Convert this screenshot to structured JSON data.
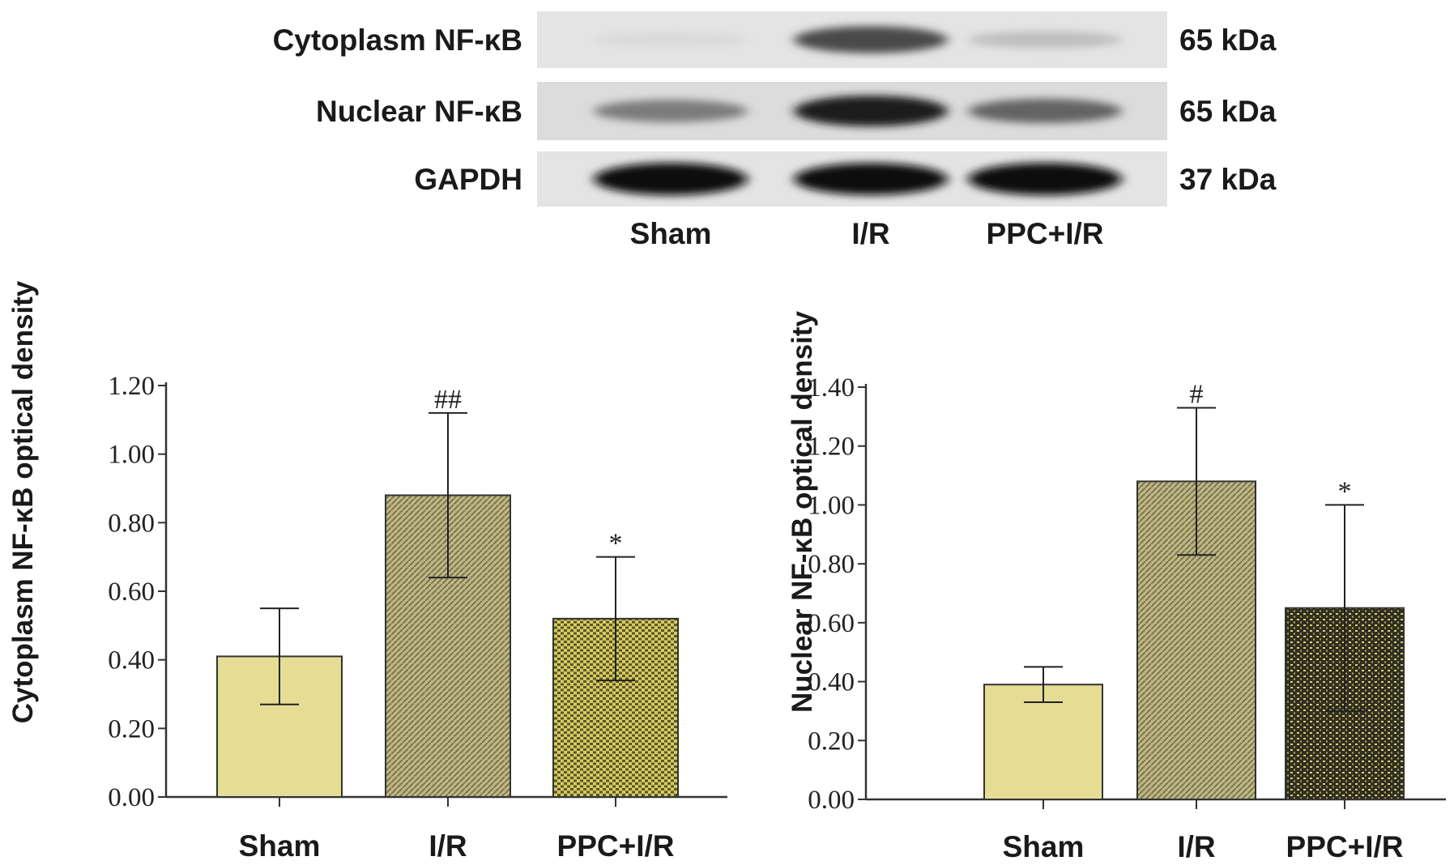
{
  "blot": {
    "rows": [
      {
        "label": "Cytoplasm NF-κB",
        "size": "65 kDa",
        "intensity": [
          0.08,
          0.72,
          0.2
        ]
      },
      {
        "label": "Nuclear NF-κB",
        "size": "65 kDa",
        "intensity": [
          0.5,
          0.92,
          0.6
        ]
      },
      {
        "label": "GAPDH",
        "size": "37 kDa",
        "intensity": [
          1.0,
          0.98,
          1.0
        ]
      }
    ],
    "lanes": [
      "Sham",
      "I/R",
      "PPC+I/R"
    ]
  },
  "chart_data": [
    {
      "type": "bar",
      "ylabel": "Cytoplasm NF-κB optical density",
      "categories": [
        "Sham",
        "I/R",
        "PPC+I/R"
      ],
      "values": [
        0.41,
        0.88,
        0.52
      ],
      "errors": [
        0.14,
        0.24,
        0.18
      ],
      "significance": [
        "",
        "##",
        "*"
      ],
      "ylim": [
        0,
        1.2
      ],
      "yticks": [
        "0.00",
        "0.20",
        "0.40",
        "0.60",
        "0.80",
        "1.00",
        "1.20"
      ],
      "bar_colors": [
        "#e6dd95",
        "#a8a070",
        "#bdb048"
      ]
    },
    {
      "type": "bar",
      "ylabel": "Nuclear NF-κB optical density",
      "categories": [
        "Sham",
        "I/R",
        "PPC+I/R"
      ],
      "values": [
        0.39,
        1.08,
        0.65
      ],
      "errors": [
        0.06,
        0.25,
        0.35
      ],
      "significance": [
        "",
        "#",
        "*"
      ],
      "ylim": [
        0,
        1.4
      ],
      "yticks": [
        "0.00",
        "0.20",
        "0.40",
        "0.60",
        "0.80",
        "1.00",
        "1.20",
        "1.40"
      ],
      "bar_colors": [
        "#e6dd95",
        "#b0a870",
        "#4a4a30"
      ]
    }
  ]
}
